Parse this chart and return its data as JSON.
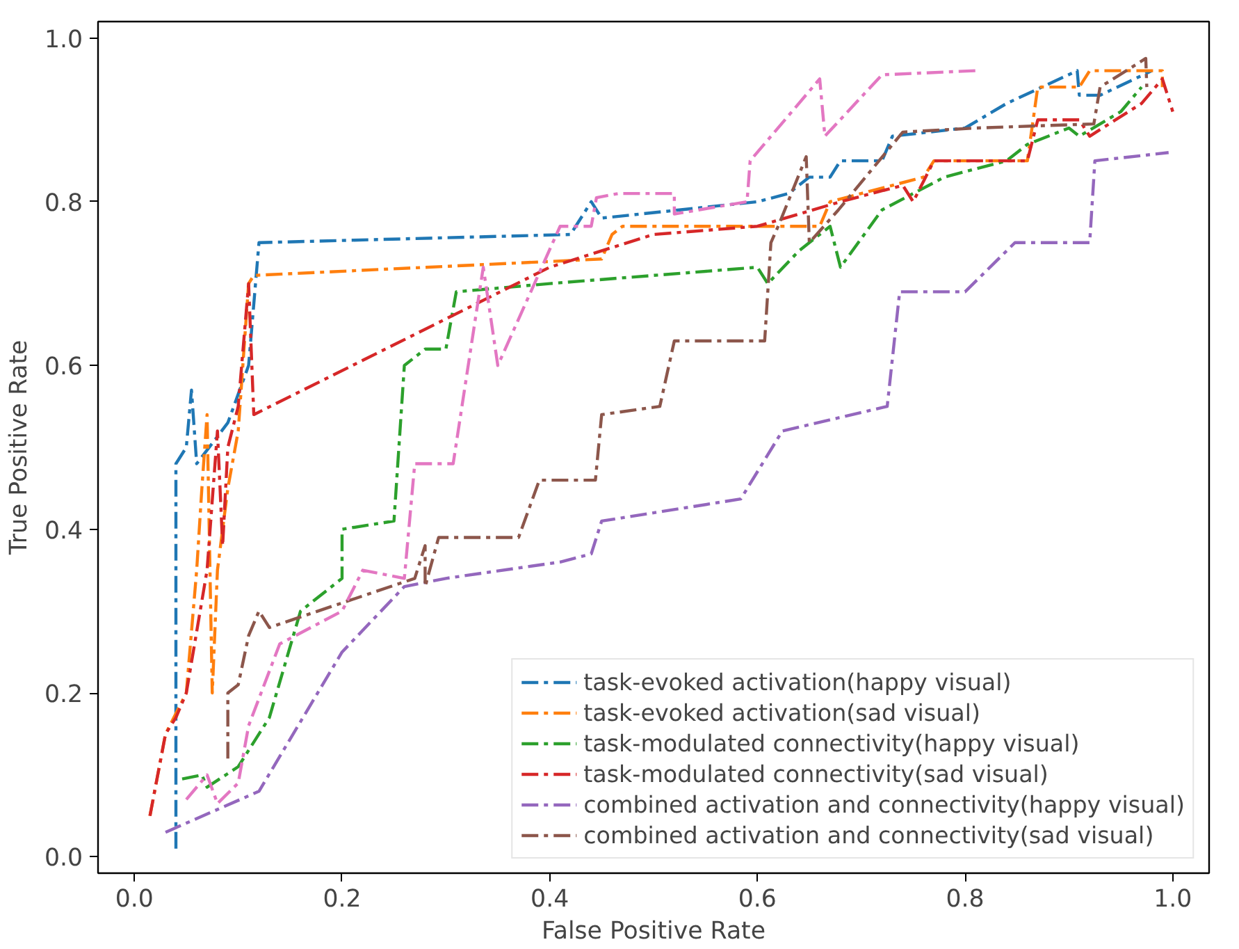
{
  "chart_data": {
    "type": "line",
    "xlabel": "False Positive Rate",
    "ylabel": "True Positive Rate",
    "xlim": [
      -0.035,
      1.035
    ],
    "ylim": [
      -0.02,
      1.02
    ],
    "xticks": [
      {
        "value": 0,
        "label": "0.0"
      },
      0.2,
      0.4,
      0.6,
      0.8,
      {
        "value": 1,
        "label": "1.0"
      }
    ],
    "yticks": [
      {
        "value": 0,
        "label": "0.0"
      },
      0.2,
      0.4,
      0.6,
      0.8,
      {
        "value": 1,
        "label": "1.0"
      }
    ],
    "grid": false,
    "legend": "bottom right",
    "line_style": "dashdot",
    "marker": "none",
    "series": [
      {
        "name": "task-evoked activation(happy visual)",
        "color": "#1f77b4",
        "x": [
          0.04,
          0.04,
          0.05,
          0.055,
          0.06,
          0.09,
          0.11,
          0.12,
          0.42,
          0.43,
          0.44,
          0.45,
          0.6,
          0.63,
          0.65,
          0.67,
          0.68,
          0.72,
          0.73,
          0.8,
          0.84,
          0.908,
          0.91,
          0.93,
          0.98
        ],
        "values": [
          0.01,
          0.48,
          0.5,
          0.57,
          0.48,
          0.53,
          0.6,
          0.75,
          0.76,
          0.78,
          0.8,
          0.78,
          0.8,
          0.81,
          0.83,
          0.83,
          0.85,
          0.85,
          0.88,
          0.89,
          0.92,
          0.96,
          0.93,
          0.93,
          0.96
        ]
      },
      {
        "name": "task-evoked activation(sad visual)",
        "color": "#ff7f0e",
        "x": [
          0.015,
          0.03,
          0.05,
          0.06,
          0.065,
          0.07,
          0.075,
          0.08,
          0.09,
          0.1,
          0.11,
          0.115,
          0.45,
          0.46,
          0.47,
          0.66,
          0.67,
          0.7,
          0.76,
          0.77,
          0.86,
          0.87,
          0.91,
          0.92,
          0.99,
          0.99
        ],
        "values": [
          0.05,
          0.15,
          0.2,
          0.35,
          0.45,
          0.54,
          0.2,
          0.35,
          0.45,
          0.52,
          0.7,
          0.71,
          0.73,
          0.76,
          0.77,
          0.77,
          0.8,
          0.81,
          0.83,
          0.85,
          0.85,
          0.94,
          0.94,
          0.96,
          0.96,
          0.94
        ]
      },
      {
        "name": "task-modulated connectivity(happy visual)",
        "color": "#2ca02c",
        "x": [
          0.046,
          0.065,
          0.07,
          0.1,
          0.13,
          0.16,
          0.2,
          0.2,
          0.25,
          0.26,
          0.28,
          0.3,
          0.31,
          0.4,
          0.6,
          0.61,
          0.64,
          0.67,
          0.68,
          0.72,
          0.75,
          0.78,
          0.84,
          0.86,
          0.9,
          0.91,
          0.95,
          0.97
        ],
        "values": [
          0.095,
          0.1,
          0.085,
          0.11,
          0.17,
          0.3,
          0.34,
          0.4,
          0.41,
          0.6,
          0.62,
          0.62,
          0.69,
          0.7,
          0.72,
          0.7,
          0.74,
          0.77,
          0.72,
          0.79,
          0.81,
          0.83,
          0.85,
          0.87,
          0.89,
          0.88,
          0.91,
          0.94
        ]
      },
      {
        "name": "task-modulated connectivity(sad visual)",
        "color": "#d62728",
        "x": [
          0.015,
          0.03,
          0.04,
          0.05,
          0.07,
          0.08,
          0.085,
          0.09,
          0.1,
          0.11,
          0.115,
          0.4,
          0.5,
          0.6,
          0.68,
          0.74,
          0.75,
          0.77,
          0.86,
          0.87,
          0.91,
          0.92,
          0.97,
          0.99,
          1.0
        ],
        "values": [
          0.05,
          0.15,
          0.17,
          0.2,
          0.35,
          0.52,
          0.38,
          0.5,
          0.55,
          0.7,
          0.54,
          0.72,
          0.76,
          0.77,
          0.8,
          0.82,
          0.8,
          0.85,
          0.85,
          0.9,
          0.9,
          0.88,
          0.92,
          0.95,
          0.91
        ]
      },
      {
        "name": "combined activation and connectivity(happy visual)",
        "color": "#9467bd",
        "x": [
          0.03,
          0.12,
          0.2,
          0.26,
          0.3,
          0.41,
          0.44,
          0.45,
          0.584,
          0.624,
          0.725,
          0.737,
          0.8,
          0.848,
          0.92,
          0.925,
          0.996
        ],
        "values": [
          0.03,
          0.08,
          0.25,
          0.33,
          0.34,
          0.36,
          0.37,
          0.41,
          0.437,
          0.52,
          0.55,
          0.69,
          0.69,
          0.75,
          0.75,
          0.85,
          0.86
        ]
      },
      {
        "name": "combined activation and connectivity(sad visual)",
        "color": "#8c564b",
        "x": [
          0.09,
          0.09,
          0.1,
          0.11,
          0.12,
          0.13,
          0.2,
          0.27,
          0.28,
          0.28,
          0.293,
          0.37,
          0.39,
          0.444,
          0.45,
          0.506,
          0.52,
          0.607,
          0.613,
          0.62,
          0.647,
          0.65,
          0.678,
          0.74,
          0.81,
          0.924,
          0.93,
          0.974,
          0.975
        ],
        "values": [
          0.12,
          0.2,
          0.21,
          0.27,
          0.3,
          0.28,
          0.31,
          0.34,
          0.38,
          0.33,
          0.39,
          0.39,
          0.46,
          0.46,
          0.54,
          0.55,
          0.63,
          0.63,
          0.75,
          0.77,
          0.855,
          0.75,
          0.79,
          0.885,
          0.89,
          0.895,
          0.94,
          0.975,
          0.94
        ]
      },
      {
        "color": "#e377c2",
        "x": [
          0.05,
          0.07,
          0.08,
          0.1,
          0.11,
          0.14,
          0.2,
          0.22,
          0.26,
          0.27,
          0.307,
          0.336,
          0.35,
          0.41,
          0.44,
          0.445,
          0.466,
          0.52,
          0.52,
          0.59,
          0.593,
          0.66,
          0.665,
          0.72,
          0.81
        ],
        "values": [
          0.07,
          0.1,
          0.065,
          0.09,
          0.16,
          0.26,
          0.3,
          0.35,
          0.34,
          0.48,
          0.48,
          0.72,
          0.6,
          0.77,
          0.77,
          0.805,
          0.81,
          0.81,
          0.785,
          0.8,
          0.85,
          0.95,
          0.88,
          0.955,
          0.96
        ]
      }
    ]
  }
}
